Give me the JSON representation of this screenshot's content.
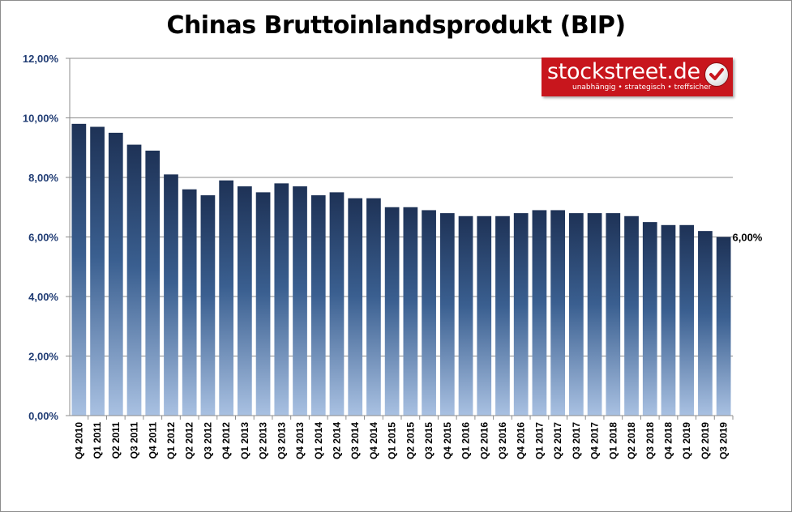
{
  "chart_data": {
    "type": "bar",
    "title": "Chinas Bruttoinlandsprodukt (BIP)",
    "xlabel": "",
    "ylabel": "",
    "ylim": [
      0,
      12
    ],
    "yticks": [
      "0,00%",
      "2,00%",
      "4,00%",
      "6,00%",
      "8,00%",
      "10,00%",
      "12,00%"
    ],
    "grid": true,
    "categories": [
      "Q4 2010",
      "Q1 2011",
      "Q2 2011",
      "Q3 2011",
      "Q4 2011",
      "Q1 2012",
      "Q2 2012",
      "Q3 2012",
      "Q4 2012",
      "Q1 2013",
      "Q2 2013",
      "Q3 2013",
      "Q4 2013",
      "Q1 2014",
      "Q2 2014",
      "Q3 2014",
      "Q4 2014",
      "Q1 2015",
      "Q2 2015",
      "Q3 2015",
      "Q4 2015",
      "Q1 2016",
      "Q2 2016",
      "Q3 2016",
      "Q4 2016",
      "Q1 2017",
      "Q2 2017",
      "Q3 2017",
      "Q4 2017",
      "Q1 2018",
      "Q2 2018",
      "Q3 2018",
      "Q4 2018",
      "Q1 2019",
      "Q2 2019",
      "Q3 2019"
    ],
    "values": [
      9.8,
      9.7,
      9.5,
      9.1,
      8.9,
      8.1,
      7.6,
      7.4,
      7.9,
      7.7,
      7.5,
      7.8,
      7.7,
      7.4,
      7.5,
      7.3,
      7.3,
      7.0,
      7.0,
      6.9,
      6.8,
      6.7,
      6.7,
      6.7,
      6.8,
      6.9,
      6.9,
      6.8,
      6.8,
      6.8,
      6.7,
      6.5,
      6.4,
      6.4,
      6.2,
      6.0
    ],
    "annotations": [
      {
        "category": "Q3 2019",
        "text": "6,00%"
      }
    ],
    "colors": {
      "bar_top": "#1e3256",
      "bar_mid": "#3a5f90",
      "bar_bottom": "#a9c1e2",
      "grid": "#8c8c8c",
      "tick_label": "#1f3b73"
    }
  },
  "logo": {
    "brand": "stockstreet.de",
    "tagline": "unabhängig • strategisch • treffsicher",
    "check_icon": "checkmark-icon",
    "color": "#c8161d"
  }
}
